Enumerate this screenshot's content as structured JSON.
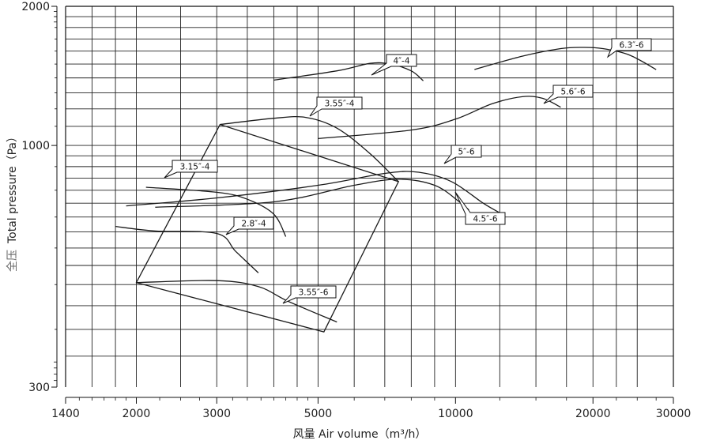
{
  "chart_data": {
    "type": "line",
    "xlabel_zh": "风量",
    "xlabel_en": "Air volume（m³/h）",
    "ylabel_zh": "全压",
    "ylabel_en": "Total pressure（Pa）",
    "x_scale": "log",
    "y_scale": "log",
    "xlim": [
      1400,
      30000
    ],
    "ylim": [
      300,
      2000
    ],
    "x_ticks": [
      1400,
      2000,
      3000,
      5000,
      10000,
      20000,
      30000
    ],
    "x_tick_labels": [
      "1400",
      "2000",
      "3000",
      "5000",
      "10000",
      "20000",
      "30000"
    ],
    "y_ticks": [
      300,
      1000,
      2000
    ],
    "y_tick_labels": [
      "300",
      "1000",
      "2000"
    ],
    "grid": true,
    "series": [
      {
        "name": "6.3#-6",
        "points": [
          [
            11000,
            1460
          ],
          [
            14000,
            1560
          ],
          [
            17000,
            1620
          ],
          [
            19000,
            1630
          ],
          [
            21000,
            1620
          ],
          [
            24000,
            1570
          ],
          [
            27500,
            1460
          ]
        ]
      },
      {
        "name": "4#-4",
        "points": [
          [
            4000,
            1385
          ],
          [
            5500,
            1450
          ],
          [
            6500,
            1505
          ],
          [
            7200,
            1500
          ],
          [
            8000,
            1450
          ],
          [
            8500,
            1380
          ]
        ]
      },
      {
        "name": "5.6#-6",
        "points": [
          [
            5000,
            1035
          ],
          [
            8000,
            1080
          ],
          [
            10000,
            1140
          ],
          [
            12000,
            1230
          ],
          [
            14000,
            1275
          ],
          [
            15500,
            1265
          ],
          [
            17000,
            1210
          ]
        ]
      },
      {
        "name": "3.55#-4",
        "points": [
          [
            3050,
            1110
          ],
          [
            4000,
            1145
          ],
          [
            4700,
            1150
          ],
          [
            5500,
            1090
          ],
          [
            6500,
            960
          ],
          [
            7500,
            835
          ]
        ]
      },
      {
        "name": "5#-6",
        "points": [
          [
            1900,
            740
          ],
          [
            3000,
            770
          ],
          [
            5000,
            820
          ],
          [
            7000,
            870
          ],
          [
            8300,
            875
          ],
          [
            9800,
            835
          ],
          [
            11500,
            750
          ],
          [
            12500,
            715
          ]
        ]
      },
      {
        "name": "4.5#-6",
        "points": [
          [
            2200,
            735
          ],
          [
            4000,
            755
          ],
          [
            6000,
            820
          ],
          [
            7500,
            845
          ],
          [
            9000,
            820
          ],
          [
            10200,
            755
          ],
          [
            10700,
            725
          ]
        ]
      },
      {
        "name": "3.15#-4",
        "points": [
          [
            2100,
            812
          ],
          [
            3000,
            792
          ],
          [
            3500,
            765
          ],
          [
            4000,
            710
          ],
          [
            4250,
            635
          ]
        ]
      },
      {
        "name": "2.8#-4",
        "points": [
          [
            1800,
            668
          ],
          [
            2200,
            653
          ],
          [
            3000,
            645
          ],
          [
            3300,
            590
          ],
          [
            3700,
            530
          ]
        ]
      },
      {
        "name": "3.55#-6",
        "points": [
          [
            2000,
            505
          ],
          [
            3000,
            510
          ],
          [
            3700,
            495
          ],
          [
            4300,
            460
          ],
          [
            5500,
            415
          ]
        ]
      },
      {
        "name": "boundary",
        "points": [
          [
            2000,
            505
          ],
          [
            3050,
            1110
          ],
          [
            7500,
            835
          ],
          [
            5150,
            395
          ],
          [
            2000,
            505
          ]
        ]
      }
    ],
    "annotations": [
      {
        "label": "6.3#-6",
        "series": "6.3#-6"
      },
      {
        "label": "4#-4",
        "series": "4#-4"
      },
      {
        "label": "5.6#-6",
        "series": "5.6#-6"
      },
      {
        "label": "3.55#-4",
        "series": "3.55#-4"
      },
      {
        "label": "5#-6",
        "series": "5#-6"
      },
      {
        "label": "4.5#-6",
        "series": "4.5#-6"
      },
      {
        "label": "3.15#-4",
        "series": "3.15#-4"
      },
      {
        "label": "2.8#-4",
        "series": "2.8#-4"
      },
      {
        "label": "3.55#-6",
        "series": "3.55#-6"
      }
    ]
  }
}
